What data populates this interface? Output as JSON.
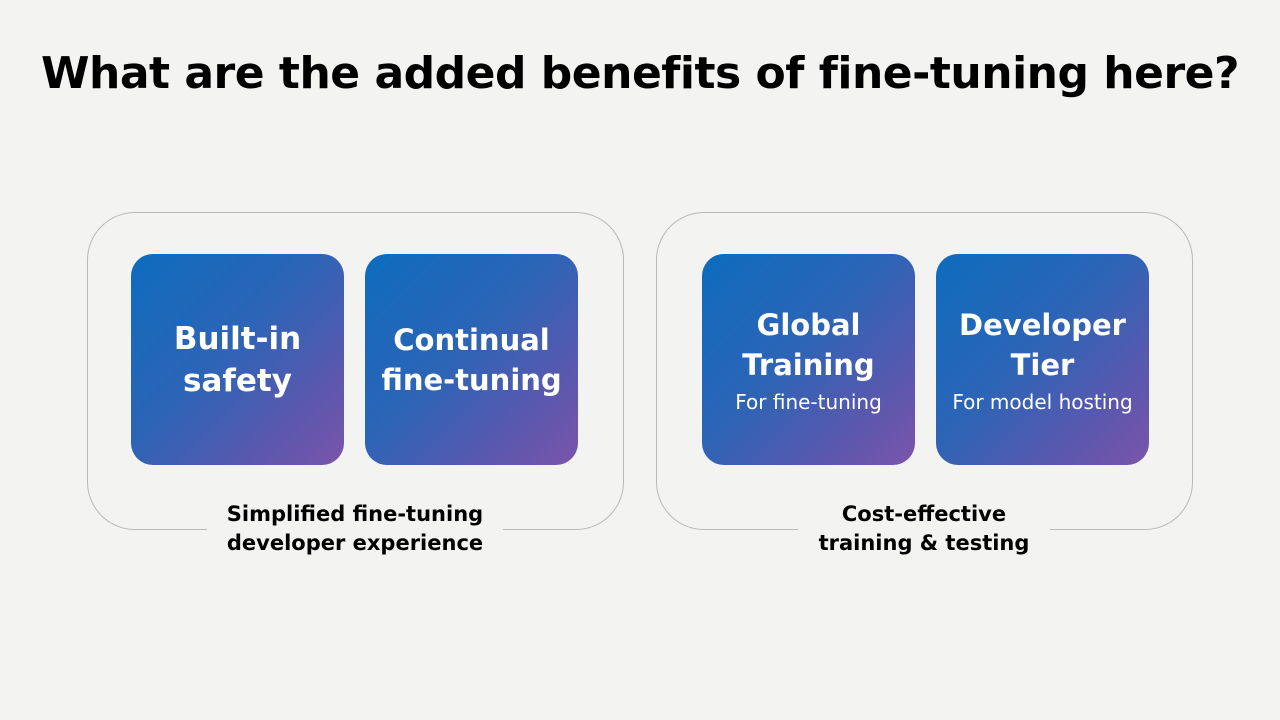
{
  "title": "What are the added benefits of fine-tuning here?",
  "groups": [
    {
      "caption": [
        "Simplified fine-tuning",
        "developer experience"
      ],
      "tiles": [
        {
          "title": [
            "Built-in",
            "safety"
          ],
          "subtitle": ""
        },
        {
          "title": [
            "Continual",
            "fine-tuning"
          ],
          "subtitle": ""
        }
      ]
    },
    {
      "caption": [
        "Cost-effective",
        "training & testing"
      ],
      "tiles": [
        {
          "title": [
            "Global",
            "Training"
          ],
          "subtitle": "For fine-tuning"
        },
        {
          "title": [
            "Developer",
            "Tier"
          ],
          "subtitle": "For model hosting"
        }
      ]
    }
  ],
  "colors": {
    "background": "#f3f3f2",
    "tile_gradient_start": "#0d6cbe",
    "tile_gradient_end": "#7a55aa",
    "frame_border": "#b9b9b9",
    "tile_text": "#ffffff"
  }
}
